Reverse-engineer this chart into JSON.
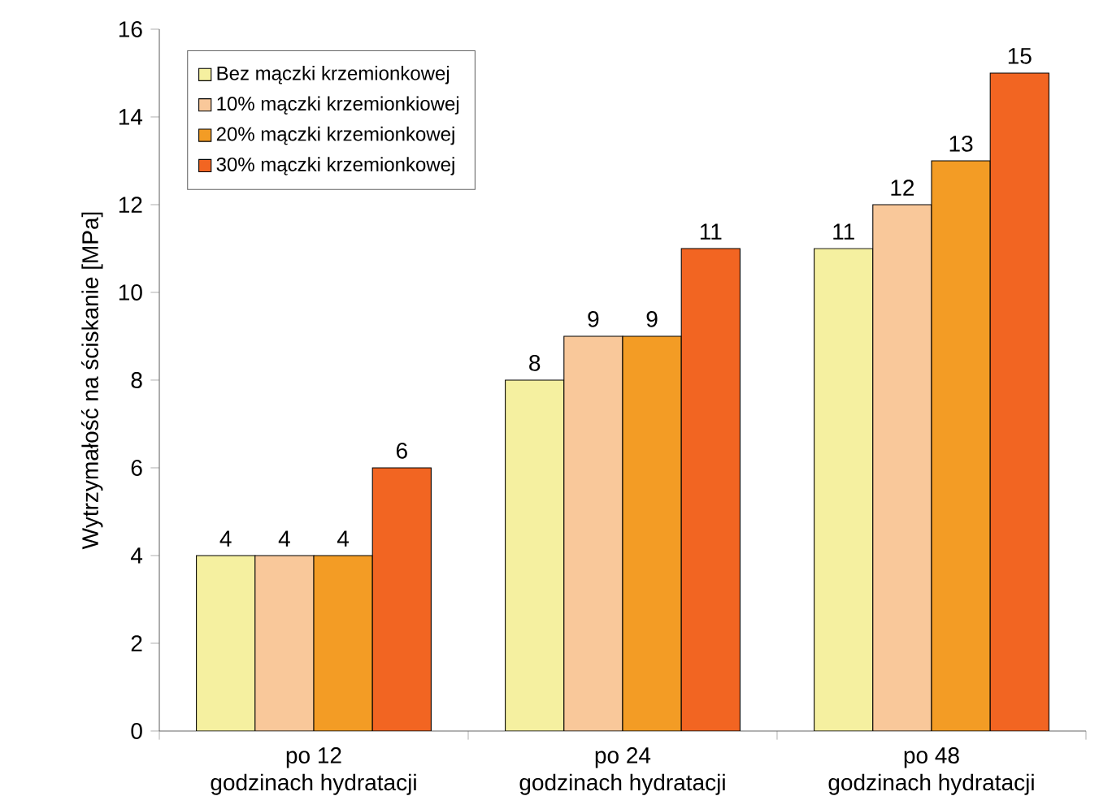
{
  "chart_data": {
    "type": "bar",
    "ylabel": "Wytrzymałość na ściskanie [MPa]",
    "categories": [
      "po 12\ngodzinach hydratacji",
      "po 24\ngodzinach hydratacji",
      "po 48\ngodzinach hydratacji"
    ],
    "series": [
      {
        "name": "Bez mączki krzemionkowej",
        "color": "#f5f0a0",
        "values": [
          4,
          8,
          11
        ]
      },
      {
        "name": "10% mączki krzemionkiowej",
        "color": "#f9c89a",
        "values": [
          4,
          9,
          12
        ]
      },
      {
        "name": "20% mączki krzemionkowej",
        "color": "#f39c25",
        "values": [
          4,
          9,
          13
        ]
      },
      {
        "name": "30% mączki krzemionkowej",
        "color": "#f26522",
        "values": [
          6,
          11,
          15
        ]
      }
    ],
    "ylim": [
      0,
      16
    ],
    "yticks": [
      0,
      2,
      4,
      6,
      8,
      10,
      12,
      14,
      16
    ],
    "data_labels": true,
    "legend": "top left",
    "grid": false
  }
}
